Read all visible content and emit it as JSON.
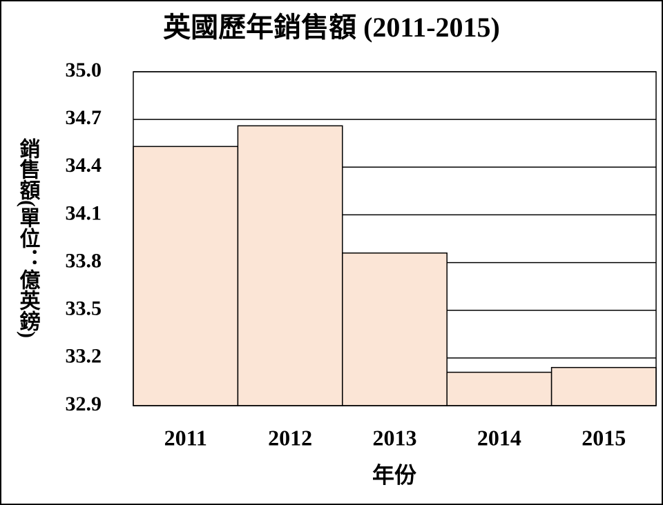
{
  "chart_data": {
    "type": "bar",
    "title": "英國歷年銷售額 (2011-2015)",
    "y_label": "銷售額(單位：億英鎊)",
    "x_label": "年份",
    "categories": [
      "2011",
      "2012",
      "2013",
      "2014",
      "2015"
    ],
    "values": [
      34.53,
      34.66,
      33.86,
      33.11,
      33.14
    ],
    "color": "#fbe5d6",
    "ylim": [
      32.9,
      35.0
    ],
    "yticks": [
      32.9,
      33.2,
      33.5,
      33.8,
      34.1,
      34.4,
      34.7,
      {
        "value": 35.0,
        "label": "35.0"
      }
    ],
    "grid": true
  }
}
